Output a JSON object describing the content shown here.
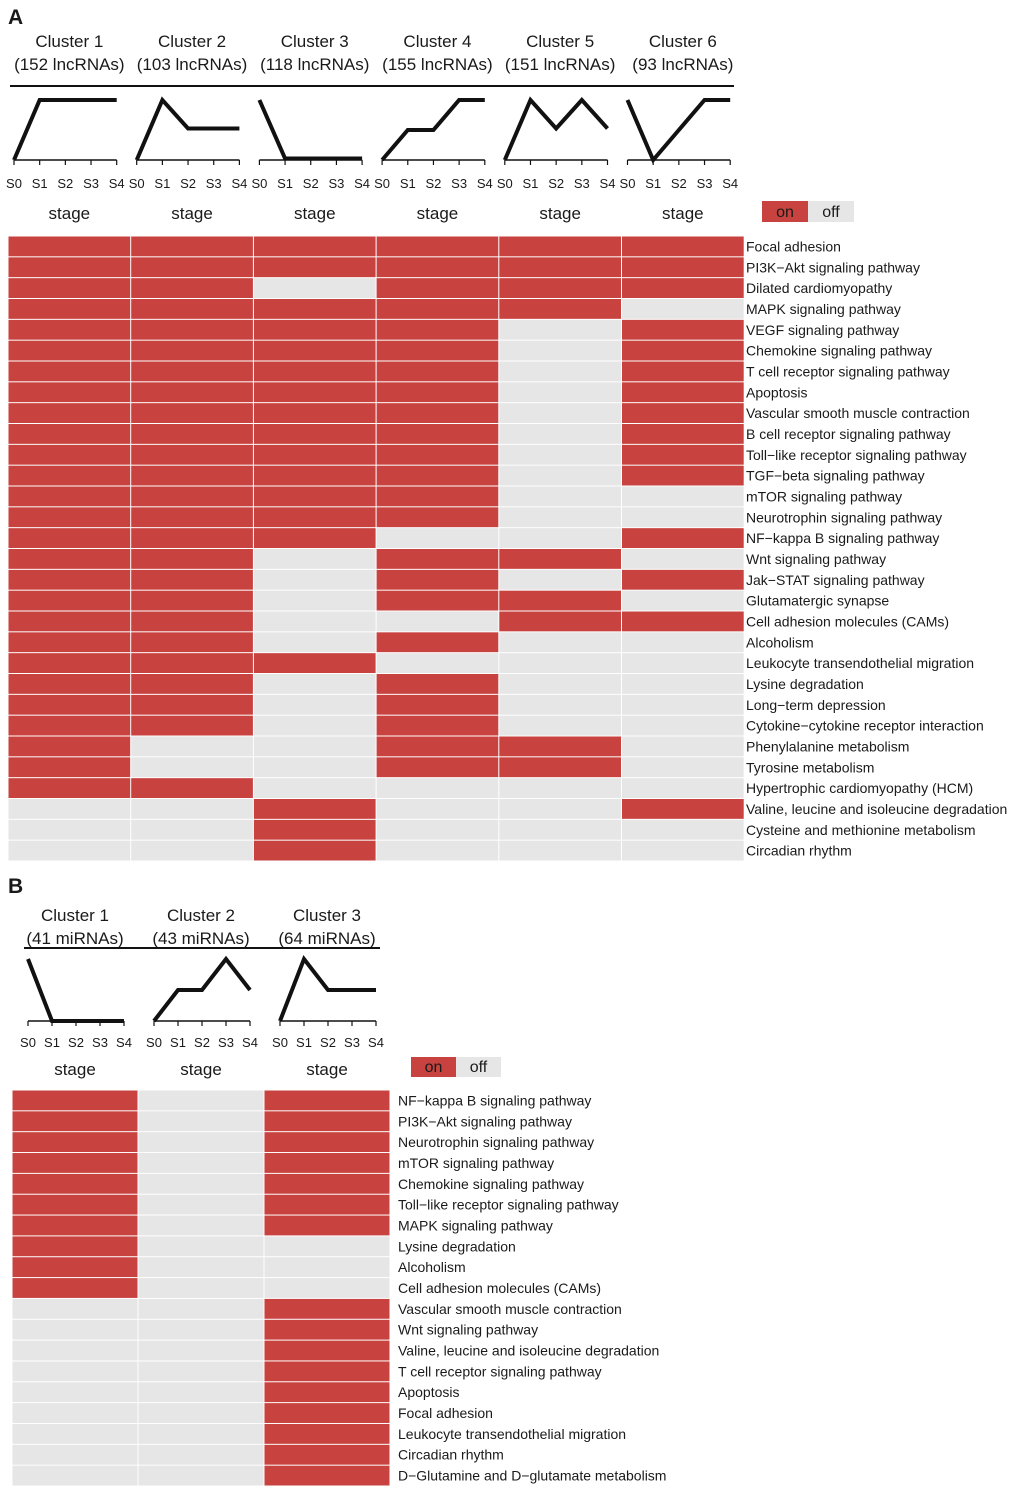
{
  "colors": {
    "on": "#c8423f",
    "off": "#e6e6e6",
    "line": "#111111"
  },
  "chart_data": [
    {
      "type": "heatmap",
      "panel": "A",
      "stages": [
        "S0",
        "S1",
        "S2",
        "S3",
        "S4"
      ],
      "axis_label": "stage",
      "legend": {
        "on": "on",
        "off": "off"
      },
      "clusters": [
        {
          "name": "Cluster 1",
          "count": "(152 lncRNAs)",
          "profile": [
            0,
            4,
            4,
            4,
            4
          ]
        },
        {
          "name": "Cluster 2",
          "count": "(103 lncRNAs)",
          "profile": [
            0,
            4,
            2.1,
            2.1,
            2.1
          ]
        },
        {
          "name": "Cluster 3",
          "count": "(118 lncRNAs)",
          "profile": [
            4,
            0.1,
            0.1,
            0.1,
            0.1
          ]
        },
        {
          "name": "Cluster 4",
          "count": "(155 lncRNAs)",
          "profile": [
            0,
            2,
            2,
            4,
            4
          ]
        },
        {
          "name": "Cluster 5",
          "count": "(151 lncRNAs)",
          "profile": [
            0,
            4,
            2.1,
            4,
            2.1
          ]
        },
        {
          "name": "Cluster 6",
          "count": "(93 lncRNAs)",
          "profile": [
            4,
            0,
            2,
            4,
            4
          ]
        }
      ],
      "pathways": [
        "Focal adhesion",
        "PI3K−Akt signaling pathway",
        "Dilated cardiomyopathy",
        "MAPK signaling pathway",
        "VEGF signaling pathway",
        "Chemokine signaling pathway",
        "T cell receptor signaling pathway",
        "Apoptosis",
        "Vascular smooth muscle contraction",
        "B cell receptor signaling pathway",
        "Toll−like receptor signaling pathway",
        "TGF−beta signaling pathway",
        "mTOR signaling pathway",
        "Neurotrophin signaling pathway",
        "NF−kappa B signaling pathway",
        "Wnt signaling pathway",
        "Jak−STAT signaling pathway",
        "Glutamatergic synapse",
        "Cell adhesion molecules (CAMs)",
        "Alcoholism",
        "Leukocyte transendothelial migration",
        "Lysine degradation",
        "Long−term depression",
        "Cytokine−cytokine receptor interaction",
        "Phenylalanine metabolism",
        "Tyrosine metabolism",
        "Hypertrophic cardiomyopathy (HCM)",
        "Valine, leucine and isoleucine degradation",
        "Cysteine and methionine metabolism",
        "Circadian rhythm"
      ],
      "matrix": [
        [
          1,
          1,
          1,
          1,
          1,
          1
        ],
        [
          1,
          1,
          1,
          1,
          1,
          1
        ],
        [
          1,
          1,
          0,
          1,
          1,
          1
        ],
        [
          1,
          1,
          1,
          1,
          1,
          0
        ],
        [
          1,
          1,
          1,
          1,
          0,
          1
        ],
        [
          1,
          1,
          1,
          1,
          0,
          1
        ],
        [
          1,
          1,
          1,
          1,
          0,
          1
        ],
        [
          1,
          1,
          1,
          1,
          0,
          1
        ],
        [
          1,
          1,
          1,
          1,
          0,
          1
        ],
        [
          1,
          1,
          1,
          1,
          0,
          1
        ],
        [
          1,
          1,
          1,
          1,
          0,
          1
        ],
        [
          1,
          1,
          1,
          1,
          0,
          1
        ],
        [
          1,
          1,
          1,
          1,
          0,
          0
        ],
        [
          1,
          1,
          1,
          1,
          0,
          0
        ],
        [
          1,
          1,
          1,
          0,
          0,
          1
        ],
        [
          1,
          1,
          0,
          1,
          1,
          0
        ],
        [
          1,
          1,
          0,
          1,
          0,
          1
        ],
        [
          1,
          1,
          0,
          1,
          1,
          0
        ],
        [
          1,
          1,
          0,
          0,
          1,
          1
        ],
        [
          1,
          1,
          0,
          1,
          0,
          0
        ],
        [
          1,
          1,
          1,
          0,
          0,
          0
        ],
        [
          1,
          1,
          0,
          1,
          0,
          0
        ],
        [
          1,
          1,
          0,
          1,
          0,
          0
        ],
        [
          1,
          1,
          0,
          1,
          0,
          0
        ],
        [
          1,
          0,
          0,
          1,
          1,
          0
        ],
        [
          1,
          0,
          0,
          1,
          1,
          0
        ],
        [
          1,
          1,
          0,
          0,
          0,
          0
        ],
        [
          0,
          0,
          1,
          0,
          0,
          1
        ],
        [
          0,
          0,
          1,
          0,
          0,
          0
        ],
        [
          0,
          0,
          1,
          0,
          0,
          0
        ]
      ]
    },
    {
      "type": "heatmap",
      "panel": "B",
      "stages": [
        "S0",
        "S1",
        "S2",
        "S3",
        "S4"
      ],
      "axis_label": "stage",
      "legend": {
        "on": "on",
        "off": "off"
      },
      "clusters": [
        {
          "name": "Cluster 1",
          "count": "(41 miRNAs)",
          "profile": [
            4,
            0,
            0,
            0,
            0
          ]
        },
        {
          "name": "Cluster 2",
          "count": "(43 miRNAs)",
          "profile": [
            0,
            2,
            2,
            4,
            2
          ]
        },
        {
          "name": "Cluster 3",
          "count": "(64 miRNAs)",
          "profile": [
            0,
            4,
            2,
            2,
            2
          ]
        }
      ],
      "pathways": [
        "NF−kappa B signaling pathway",
        "PI3K−Akt signaling pathway",
        "Neurotrophin signaling pathway",
        "mTOR signaling pathway",
        "Chemokine signaling pathway",
        "Toll−like receptor signaling pathway",
        "MAPK signaling pathway",
        "Lysine degradation",
        "Alcoholism",
        "Cell adhesion molecules (CAMs)",
        "Vascular smooth muscle contraction",
        "Wnt signaling pathway",
        "Valine, leucine and isoleucine degradation",
        "T cell receptor signaling pathway",
        "Apoptosis",
        "Focal adhesion",
        "Leukocyte transendothelial migration",
        "Circadian rhythm",
        "D−Glutamine and D−glutamate metabolism"
      ],
      "matrix": [
        [
          1,
          0,
          1
        ],
        [
          1,
          0,
          1
        ],
        [
          1,
          0,
          1
        ],
        [
          1,
          0,
          1
        ],
        [
          1,
          0,
          1
        ],
        [
          1,
          0,
          1
        ],
        [
          1,
          0,
          1
        ],
        [
          1,
          0,
          0
        ],
        [
          1,
          0,
          0
        ],
        [
          1,
          0,
          0
        ],
        [
          0,
          0,
          1
        ],
        [
          0,
          0,
          1
        ],
        [
          0,
          0,
          1
        ],
        [
          0,
          0,
          1
        ],
        [
          0,
          0,
          1
        ],
        [
          0,
          0,
          1
        ],
        [
          0,
          0,
          1
        ],
        [
          0,
          0,
          1
        ],
        [
          0,
          0,
          1
        ]
      ]
    }
  ]
}
